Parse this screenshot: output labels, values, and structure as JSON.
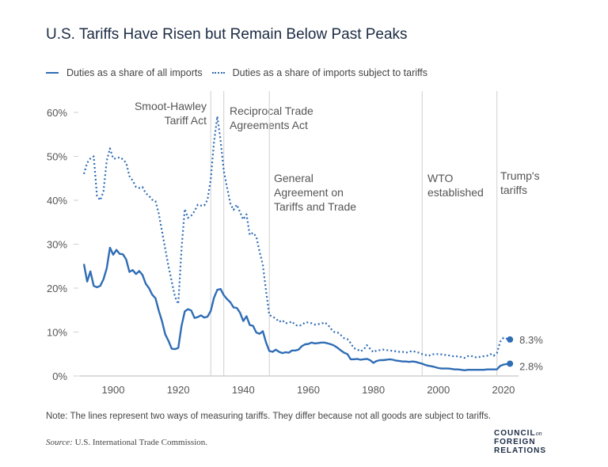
{
  "title": "U.S. Tariffs Have Risen but Remain Below Past Peaks",
  "note": "Note: The lines represent two ways of measuring tariffs. They differ because not all goods are subject to tariffs.",
  "source_label": "Source:",
  "source_text": "U.S. International Trade Commission.",
  "logo": {
    "line1": "COUNCIL",
    "on": "on",
    "line2": "FOREIGN",
    "line3": "RELATIONS"
  },
  "colors": {
    "series": "#2f6db5",
    "events": "#cfcfcf",
    "axis": "#cfcfcf"
  },
  "chart_data": {
    "type": "line",
    "title": "U.S. Tariffs Have Risen but Remain Below Past Peaks",
    "xlabel": "",
    "ylabel": "",
    "xlim": [
      1891,
      2022
    ],
    "ylim": [
      0,
      60
    ],
    "xticks": [
      1900,
      1920,
      1940,
      1960,
      1980,
      2000,
      2020
    ],
    "yticks": [
      0,
      10,
      20,
      30,
      40,
      50,
      60
    ],
    "ytick_labels": [
      "0%",
      "10%",
      "20%",
      "30%",
      "40%",
      "50%",
      "60%"
    ],
    "grid": false,
    "legend": "top-left",
    "x": [
      1891,
      1892,
      1893,
      1894,
      1895,
      1896,
      1897,
      1898,
      1899,
      1900,
      1901,
      1902,
      1903,
      1904,
      1905,
      1906,
      1907,
      1908,
      1909,
      1910,
      1911,
      1912,
      1913,
      1914,
      1915,
      1916,
      1917,
      1918,
      1919,
      1920,
      1921,
      1922,
      1923,
      1924,
      1925,
      1926,
      1927,
      1928,
      1929,
      1930,
      1931,
      1932,
      1933,
      1934,
      1935,
      1936,
      1937,
      1938,
      1939,
      1940,
      1941,
      1942,
      1943,
      1944,
      1945,
      1946,
      1947,
      1948,
      1949,
      1950,
      1951,
      1952,
      1953,
      1954,
      1955,
      1956,
      1957,
      1958,
      1959,
      1960,
      1961,
      1962,
      1963,
      1964,
      1965,
      1966,
      1967,
      1968,
      1969,
      1970,
      1971,
      1972,
      1973,
      1974,
      1975,
      1976,
      1977,
      1978,
      1979,
      1980,
      1981,
      1982,
      1983,
      1984,
      1985,
      1986,
      1987,
      1988,
      1989,
      1990,
      1991,
      1992,
      1993,
      1994,
      1995,
      1996,
      1997,
      1998,
      1999,
      2000,
      2001,
      2002,
      2003,
      2004,
      2005,
      2006,
      2007,
      2008,
      2009,
      2010,
      2011,
      2012,
      2013,
      2014,
      2015,
      2016,
      2017,
      2018,
      2019,
      2020,
      2021,
      2022
    ],
    "series": [
      {
        "name": "Duties as a share of all imports",
        "style": "solid",
        "end_label": "2.8%",
        "values": [
          25.5,
          21.5,
          23.8,
          20.5,
          20.2,
          20.5,
          22,
          24.5,
          29.2,
          27.6,
          28.7,
          27.8,
          27.7,
          26.5,
          23.7,
          24.1,
          23.2,
          23.9,
          23,
          21,
          20,
          18.5,
          17.7,
          14.9,
          12.5,
          9.5,
          8,
          6.2,
          6.1,
          6.4,
          11.4,
          14.7,
          15.2,
          14.9,
          13.2,
          13.4,
          13.8,
          13.3,
          13.5,
          14.8,
          17.8,
          19.6,
          19.8,
          18.4,
          17.5,
          16.8,
          15.6,
          15.5,
          14.4,
          12.5,
          13.6,
          11.6,
          11.4,
          9.9,
          9.6,
          10.2,
          7.6,
          5.7,
          5.5,
          6.0,
          5.5,
          5.2,
          5.4,
          5.3,
          5.8,
          5.8,
          6.0,
          6.8,
          7.2,
          7.3,
          7.6,
          7.4,
          7.5,
          7.6,
          7.6,
          7.4,
          7.2,
          6.9,
          6.4,
          5.8,
          5.3,
          5.0,
          3.8,
          3.8,
          3.9,
          3.7,
          3.8,
          3.9,
          3.6,
          3.0,
          3.4,
          3.6,
          3.6,
          3.7,
          3.8,
          3.7,
          3.5,
          3.4,
          3.3,
          3.3,
          3.2,
          3.3,
          3.2,
          3.0,
          2.8,
          2.5,
          2.3,
          2.2,
          2.0,
          1.8,
          1.7,
          1.7,
          1.7,
          1.6,
          1.5,
          1.5,
          1.4,
          1.3,
          1.4,
          1.4,
          1.4,
          1.4,
          1.4,
          1.4,
          1.5,
          1.5,
          1.5,
          1.5,
          2.3,
          2.6,
          2.7,
          2.8
        ]
      },
      {
        "name": "Duties as a share of imports subject to tariffs",
        "style": "dotted",
        "end_label": "8.3%",
        "values": [
          46,
          48.5,
          49.5,
          50,
          41,
          40,
          42,
          49,
          51.8,
          49.5,
          49.5,
          49.8,
          49.3,
          48.5,
          45.5,
          44.5,
          43,
          42.8,
          43,
          41.6,
          41,
          40.1,
          39.8,
          37,
          33,
          29,
          25,
          21.5,
          18,
          16.4,
          29,
          38,
          36,
          36.5,
          37.5,
          39,
          38.8,
          38.8,
          40.1,
          44.7,
          53.2,
          59.1,
          53.6,
          46.7,
          42.9,
          39.3,
          37.8,
          39,
          37.3,
          35.6,
          36.8,
          32.1,
          32.6,
          31.7,
          28.3,
          25.3,
          19.3,
          13.9,
          13.5,
          13.1,
          12.3,
          12.7,
          12.0,
          12.1,
          12.4,
          11.6,
          11.4,
          11.6,
          12.2,
          12.2,
          12.0,
          11.7,
          11.8,
          11.9,
          12.2,
          11.7,
          10.7,
          10.0,
          9.9,
          9.3,
          8.6,
          8.4,
          7.5,
          6.3,
          6.1,
          5.6,
          6.0,
          7.0,
          6.2,
          5.4,
          5.8,
          5.9,
          6.0,
          5.9,
          5.8,
          5.7,
          5.6,
          5.5,
          5.5,
          5.3,
          5.5,
          5.7,
          5.5,
          5.3,
          5.0,
          4.8,
          4.6,
          4.9,
          5.0,
          5.0,
          4.9,
          4.8,
          4.7,
          4.6,
          4.4,
          4.5,
          4.3,
          4.1,
          4.5,
          4.6,
          4.3,
          4.2,
          4.4,
          4.5,
          4.6,
          5.0,
          4.6,
          5.2,
          7.8,
          8.7,
          8.5,
          8.3
        ]
      }
    ],
    "annotations": [
      {
        "year": 1930,
        "lines": [
          "Smoot-Hawley",
          "Tariff Act"
        ]
      },
      {
        "year": 1934,
        "lines": [
          "Reciprocal Trade",
          "Agreements Act"
        ]
      },
      {
        "year": 1948,
        "lines": [
          "General",
          "Agreement on",
          "Tariffs and Trade"
        ]
      },
      {
        "year": 1995,
        "lines": [
          "WTO",
          "established"
        ]
      },
      {
        "year": 2018,
        "lines": [
          "Trump's",
          "tariffs"
        ]
      }
    ]
  }
}
